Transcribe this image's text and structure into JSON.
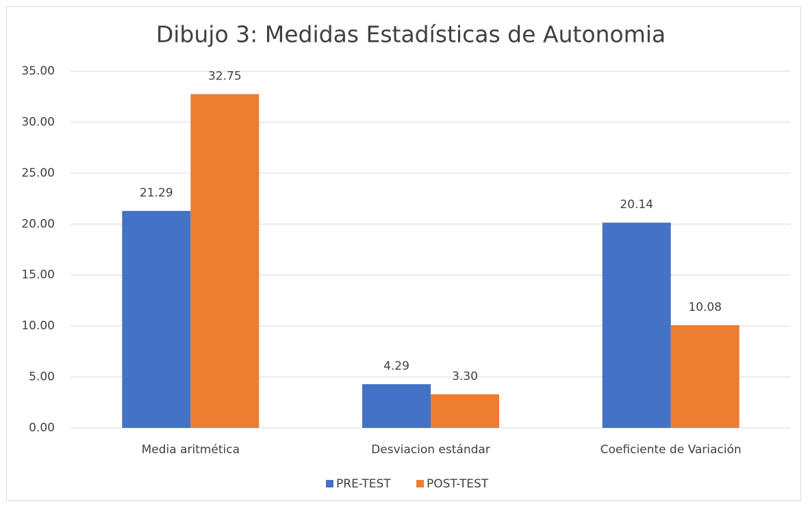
{
  "chart_data": {
    "type": "bar",
    "title": "Dibujo 3: Medidas Estadísticas de Autonomia",
    "categories": [
      "Media aritmética",
      "Desviacion estándar",
      "Coeficiente de Variación"
    ],
    "series": [
      {
        "name": "PRE-TEST",
        "color": "#4472c4",
        "values": [
          21.29,
          4.29,
          20.14
        ],
        "value_labels": [
          "21.29",
          "4.29",
          "20.14"
        ]
      },
      {
        "name": "POST-TEST",
        "color": "#ed7d31",
        "values": [
          32.75,
          3.3,
          10.08
        ],
        "value_labels": [
          "32.75",
          "3.30",
          "10.08"
        ]
      }
    ],
    "ylim": [
      0,
      35
    ],
    "yticks": [
      {
        "value": 0,
        "label": "0.00"
      },
      {
        "value": 5,
        "label": "5.00"
      },
      {
        "value": 10,
        "label": "10.00"
      },
      {
        "value": 15,
        "label": "15.00"
      },
      {
        "value": 20,
        "label": "20.00"
      },
      {
        "value": 25,
        "label": "25.00"
      },
      {
        "value": 30,
        "label": "30.00"
      },
      {
        "value": 35,
        "label": "35.00"
      }
    ],
    "grid": true,
    "legend": "bottom"
  }
}
